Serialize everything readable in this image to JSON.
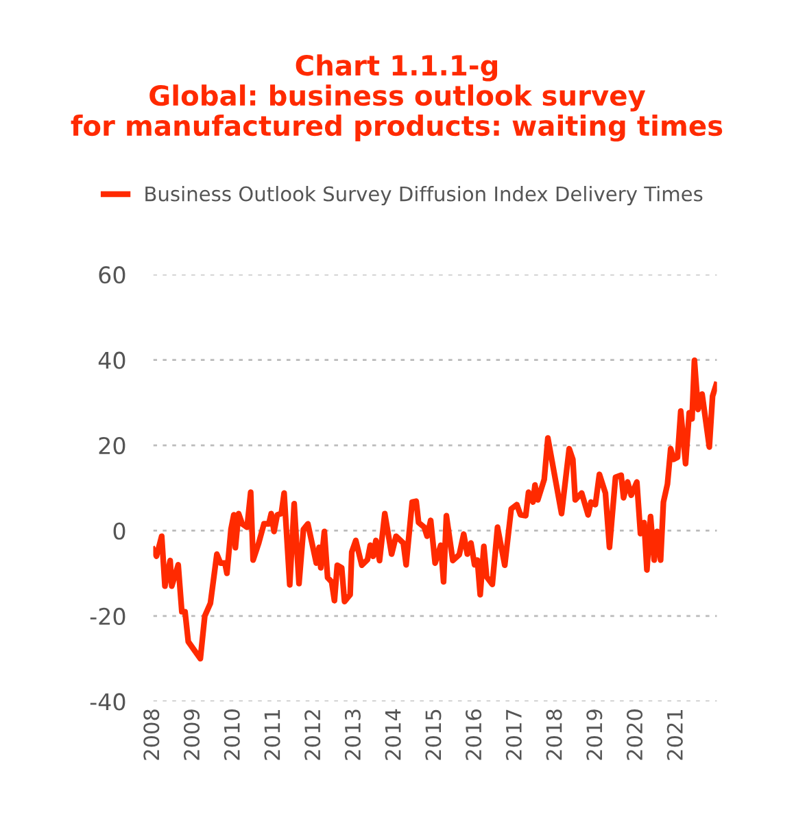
{
  "chart_data": {
    "type": "line",
    "title": "Chart 1.1.1-g\nGlobal: business outlook survey\nfor manufactured products: waiting times",
    "xticks": [
      2008,
      2009,
      2010,
      2011,
      2012,
      2013,
      2014,
      2015,
      2016,
      2017,
      2018,
      2019,
      2020,
      2021
    ],
    "xlim": [
      2008,
      2022
    ],
    "ylim": [
      -40,
      60
    ],
    "yticks": [
      -40,
      -20,
      0,
      20,
      40,
      60
    ],
    "grid": "y",
    "legend": "top",
    "series": [
      {
        "name": "Business Outlook Survey Diffusion Index Delivery Times",
        "color": "#ff2a00",
        "x": [
          2008.0,
          2008.08,
          2008.21,
          2008.29,
          2008.42,
          2008.46,
          2008.62,
          2008.71,
          2008.79,
          2008.87,
          2009.17,
          2009.28,
          2009.42,
          2009.58,
          2009.67,
          2009.78,
          2009.83,
          2009.93,
          2010.0,
          2010.04,
          2010.12,
          2010.21,
          2010.33,
          2010.42,
          2010.48,
          2010.62,
          2010.75,
          2010.87,
          2010.93,
          2011.0,
          2011.08,
          2011.18,
          2011.25,
          2011.39,
          2011.5,
          2011.62,
          2011.73,
          2011.84,
          2012.05,
          2012.12,
          2012.16,
          2012.25,
          2012.33,
          2012.43,
          2012.5,
          2012.57,
          2012.68,
          2012.75,
          2012.89,
          2012.93,
          2013.03,
          2013.18,
          2013.32,
          2013.39,
          2013.46,
          2013.53,
          2013.62,
          2013.75,
          2013.92,
          2014.03,
          2014.21,
          2014.28,
          2014.43,
          2014.53,
          2014.59,
          2014.73,
          2014.8,
          2014.89,
          2015.0,
          2015.14,
          2015.21,
          2015.28,
          2015.44,
          2015.6,
          2015.71,
          2015.8,
          2015.89,
          2015.98,
          2016.05,
          2016.12,
          2016.21,
          2016.28,
          2016.42,
          2016.55,
          2016.73,
          2016.89,
          2017.03,
          2017.12,
          2017.25,
          2017.32,
          2017.43,
          2017.48,
          2017.55,
          2017.71,
          2017.8,
          2018.14,
          2018.33,
          2018.42,
          2018.48,
          2018.64,
          2018.8,
          2018.87,
          2018.98,
          2019.08,
          2019.23,
          2019.33,
          2019.48,
          2019.62,
          2019.68,
          2019.78,
          2019.87,
          2020.01,
          2020.1,
          2020.19,
          2020.26,
          2020.35,
          2020.44,
          2020.51,
          2020.6,
          2020.67,
          2020.77,
          2020.85,
          2020.92,
          2021.02,
          2021.1,
          2021.22,
          2021.31,
          2021.38,
          2021.44,
          2021.53,
          2021.63,
          2021.81,
          2021.89,
          2021.98
        ],
        "values": [
          -4.4,
          -6,
          -1.3,
          -13,
          -7,
          -13,
          -8,
          -19,
          -19,
          -26,
          -30,
          -20,
          -17,
          -5.5,
          -7.6,
          -7.6,
          -10,
          0.3,
          3.7,
          -4,
          4,
          1.6,
          0.8,
          9,
          -6.9,
          -2.9,
          1.6,
          1.6,
          4,
          -0.2,
          3.7,
          4,
          8.8,
          -12.7,
          6.3,
          -12.4,
          0.3,
          1.6,
          -7.6,
          -3.9,
          -8.7,
          -0.2,
          -11,
          -12,
          -16.4,
          -8.1,
          -8.7,
          -16.6,
          -15,
          -5,
          -2.3,
          -8.1,
          -6.8,
          -3.4,
          -6,
          -2.3,
          -7,
          4,
          -5.5,
          -1.3,
          -2.9,
          -8,
          6.7,
          6.9,
          1.9,
          0.8,
          -1.3,
          2.4,
          -7.6,
          -3.4,
          -12,
          3.5,
          -7,
          -5.6,
          -0.8,
          -5.5,
          -2.9,
          -8,
          -6.9,
          -15,
          -3.7,
          -10.8,
          -12.6,
          0.8,
          -8.1,
          5.1,
          6.1,
          3.7,
          3.5,
          9,
          6.7,
          10.7,
          7.2,
          12,
          21.7,
          4,
          19.2,
          16.7,
          7.2,
          8.8,
          3.7,
          6.7,
          6.1,
          13.2,
          8.8,
          -3.9,
          12.5,
          13,
          7.7,
          11.4,
          8.3,
          11.4,
          -0.7,
          1.9,
          -9.2,
          3.3,
          -6.9,
          -0.2,
          -6.9,
          6.7,
          10.9,
          19.2,
          16.7,
          17.2,
          28,
          15.7,
          27.6,
          26.2,
          39.9,
          28.4,
          32,
          19.6,
          31.5,
          34.2
        ]
      }
    ]
  }
}
